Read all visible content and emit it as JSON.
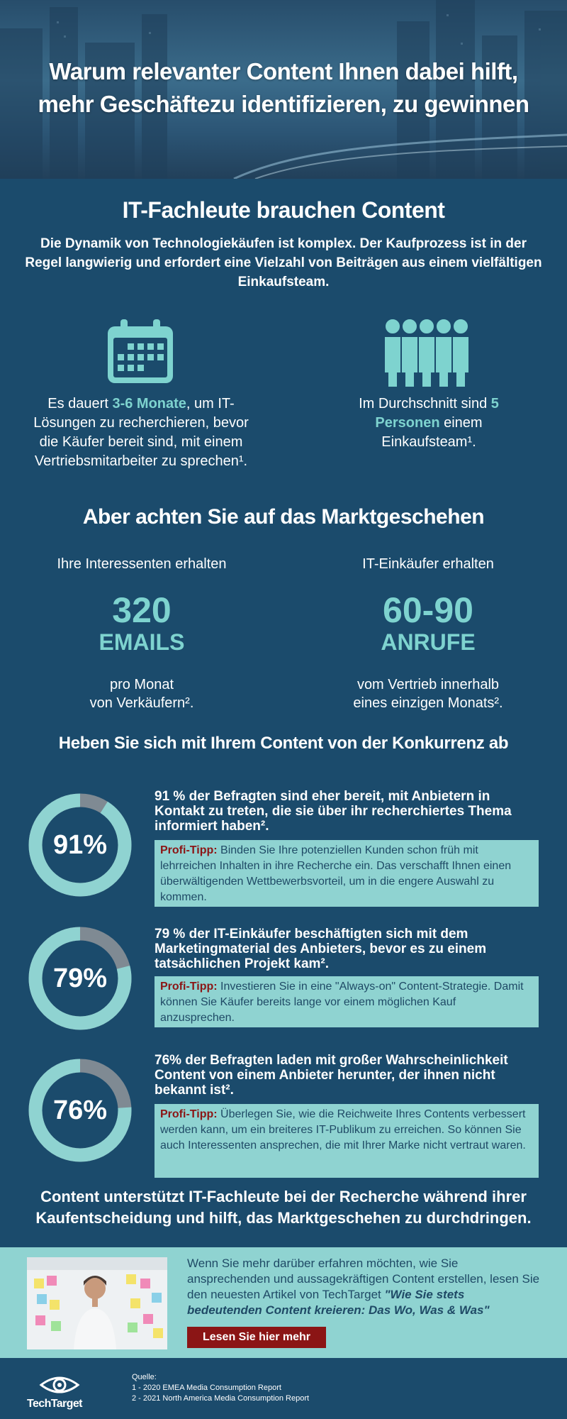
{
  "hero": {
    "title": "Warum relevanter Content Ihnen dabei hilft, mehr Geschäftezu identifizieren, zu gewinnen"
  },
  "it_section": {
    "title": "IT-Fachleute brauchen Content",
    "intro": "Die Dynamik von Technologiekäufen ist komplex. Der Kaufprozess ist in der Regel langwierig und erfordert eine Vielzahl von Beiträgen aus einem vielfältigen Einkaufsteam.",
    "left": {
      "icon": "calendar-icon",
      "pre": "Es dauert ",
      "highlight": "3-6 Monate",
      "post": ", um IT-Lösungen zu recherchieren, bevor die Käufer bereit sind, mit einem Vertriebsmitarbeiter zu sprechen¹."
    },
    "right": {
      "icon": "team-icon",
      "pre": "Im Durchschnitt sind ",
      "highlight": "5 Personen",
      "post": " einem Einkaufsteam¹."
    }
  },
  "market": {
    "title": "Aber achten Sie auf das Marktgeschehen",
    "left": {
      "lead": "Ihre Interessenten erhalten",
      "big": "320",
      "unit": "EMAILS",
      "sub1": "pro Monat",
      "sub2": "von Verkäufern²."
    },
    "right": {
      "lead": "IT-Einkäufer erhalten",
      "big": "60-90",
      "unit": "ANRUFE",
      "sub1": "vom Vertrieb innerhalb",
      "sub2": "eines einzigen Monats²."
    }
  },
  "competition": {
    "title": "Heben Sie sich mit Ihrem Content von der Konkurrenz ab",
    "tip_label": "Profi-Tipp:",
    "items": [
      {
        "percent_label": "91%",
        "value": 0.91,
        "claim": "91 % der Befragten sind eher bereit, mit Anbietern in Kontakt zu treten, die sie über ihr recherchiertes Thema informiert haben².",
        "tip": " Binden Sie Ihre potenziellen Kunden schon früh mit lehrreichen Inhalten in ihre Recherche ein. Das verschafft Ihnen einen überwältigenden Wettbewerbsvorteil, um in die engere Auswahl zu kommen."
      },
      {
        "percent_label": "79%",
        "value": 0.79,
        "claim": "79 % der IT-Einkäufer beschäftigten sich mit dem Marketingmaterial des Anbieters, bevor es zu einem tatsächlichen Projekt kam².",
        "tip": " Investieren Sie in eine \"Always-on\" Content-Strategie. Damit können Sie Käufer bereits lange vor einem möglichen Kauf anzusprechen."
      },
      {
        "percent_label": "76%",
        "value": 0.76,
        "claim": "76% der Befragten laden mit großer Wahrscheinlichkeit Content von einem Anbieter herunter, der ihnen nicht bekannt ist².",
        "tip": " Überlegen Sie, wie die Reichweite Ihres Contents verbessert werden kann, um ein breiteres IT-Publikum zu erreichen. So können Sie auch Interessenten ansprechen, die mit Ihrer Marke nicht vertraut waren."
      }
    ]
  },
  "closing": "Content unterstützt IT-Fachleute bei der Recherche während ihrer Kaufentscheidung und hilft, das Marktgeschehen zu durchdringen.",
  "cta": {
    "text": "Wenn Sie mehr darüber erfahren möchten, wie Sie ansprechenden und aussagekräftigen Content erstellen, lesen Sie den neuesten Artikel von TechTarget ",
    "article": "\"Wie Sie stets bedeutenden Content kreieren: Das Wo, Was & Was\"",
    "button": "Lesen Sie hier mehr"
  },
  "footer": {
    "logo": "TechTarget",
    "sources_label": "Quelle:",
    "sources": [
      "1 - 2020 EMEA Media Consumption Report",
      "2 - 2021 North America Media Consumption Report"
    ]
  },
  "colors": {
    "background": "#1b4b6c",
    "accent": "#7ed3cf",
    "tip_bg": "#8fd3d1",
    "tip_label": "#8b1515",
    "ring_rest": "#7f8a93"
  }
}
